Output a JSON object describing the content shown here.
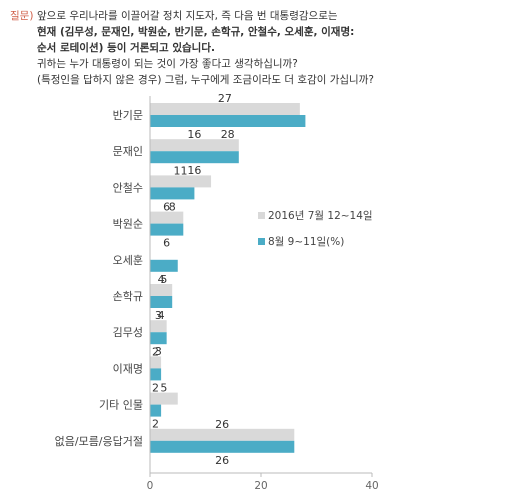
{
  "question": {
    "tag": "질문)",
    "lines": [
      {
        "text": "앞으로 우리나라를 이끌어갈 정치 지도자, 즉 다음 번 대통령감으로는",
        "bold": false
      },
      {
        "text": "현재 (김무성, 문재인, 박원순, 반기문, 손학규, 안철수, 오세훈, 이재명:",
        "bold": true
      },
      {
        "text": "순서 로테이션) 등이 거론되고 있습니다.",
        "bold": true
      },
      {
        "text": "귀하는 누가 대통령이 되는 것이 가장 좋다고 생각하십니까?",
        "bold": false
      },
      {
        "text": "(특정인을 답하지 않은 경우) 그럼, 누구에게 조금이라도 더 호감이 가십니까?",
        "bold": false
      }
    ]
  },
  "chart_data": {
    "type": "bar",
    "orientation": "horizontal",
    "categories": [
      "반기문",
      "문재인",
      "안철수",
      "박원순",
      "오세훈",
      "손학규",
      "김무성",
      "이재명",
      "기타 인물",
      "없음/모름/응답거절"
    ],
    "series": [
      {
        "name": "2016년 7월 12~14일",
        "color": "#d9d9d9",
        "values": [
          27,
          16,
          11,
          6,
          null,
          4,
          3,
          2,
          5,
          26
        ]
      },
      {
        "name": "8월 9~11일(%)",
        "color": "#4bacc6",
        "values": [
          28,
          16,
          8,
          6,
          5,
          4,
          3,
          2,
          2,
          26
        ]
      }
    ],
    "xlim": [
      0,
      40
    ],
    "xticks": [
      0,
      20,
      40
    ],
    "legend_position": "middle-right",
    "grid": false
  }
}
